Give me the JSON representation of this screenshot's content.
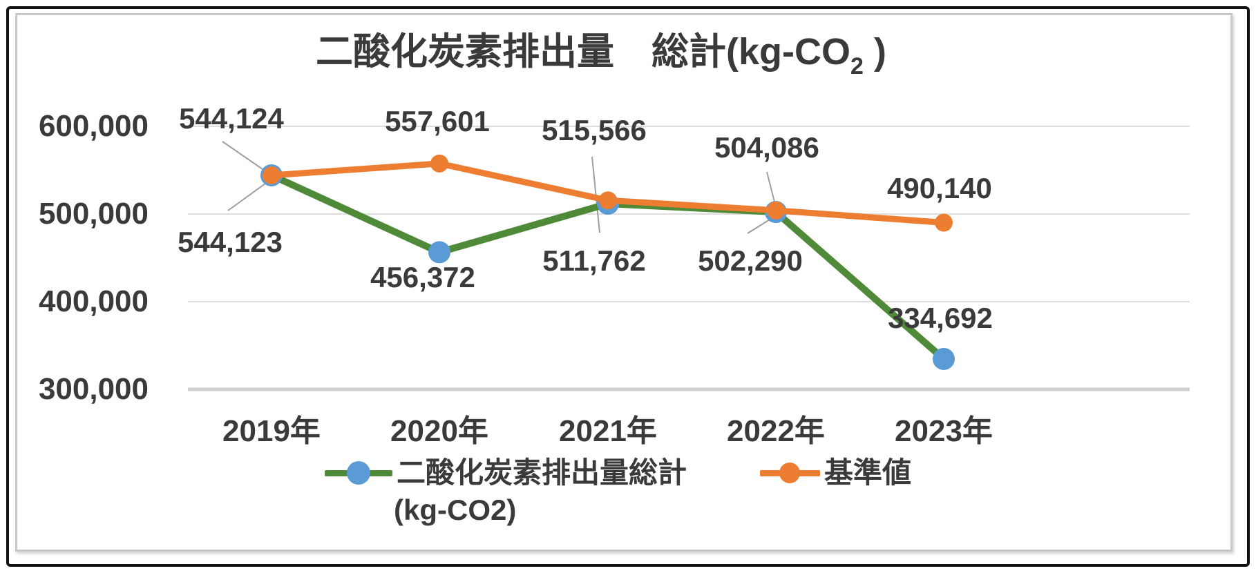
{
  "title": {
    "prefix": "二酸化炭素排出量　総計(kg-CO",
    "subscript": "2",
    "suffix": " )"
  },
  "legend": {
    "items": [
      {
        "line1": "二酸化炭素排出量総計",
        "line2": "(kg-CO2)"
      },
      {
        "line1": "基準値"
      }
    ]
  },
  "colors": {
    "series1_line": "#4e8a38",
    "series1_marker": "#5b9bd5",
    "series2_line": "#ed7d31",
    "series2_marker": "#ed7d31",
    "gridline": "#dedede",
    "axis_line": "#cfcfcf",
    "leader_line": "#9e9e9e",
    "text": "#3a3a3a"
  },
  "chart_data": {
    "type": "line",
    "title": "二酸化炭素排出量 総計(kg-CO2)",
    "categories": [
      "2019年",
      "2020年",
      "2021年",
      "2022年",
      "2023年"
    ],
    "series": [
      {
        "name": "二酸化炭素排出量総計 (kg-CO2)",
        "values": [
          544123,
          456372,
          511762,
          502290,
          334692
        ],
        "data_labels": [
          "544,123",
          "456,372",
          "511,762",
          "502,290",
          "334,692"
        ],
        "line_color": "#4e8a38",
        "marker_color": "#5b9bd5",
        "marker": "circle"
      },
      {
        "name": "基準値",
        "values": [
          544124,
          557601,
          515566,
          504086,
          490140
        ],
        "data_labels": [
          "544,124",
          "557,601",
          "515,566",
          "504,086",
          "490,140"
        ],
        "line_color": "#ed7d31",
        "marker_color": "#ed7d31",
        "marker": "circle"
      }
    ],
    "xlabel": "",
    "ylabel": "",
    "ylim": [
      300000,
      600000
    ],
    "ytick_interval": 100000,
    "ytick_labels": [
      "600,000",
      "500,000",
      "400,000",
      "300,000"
    ],
    "grid": true,
    "legend_position": "bottom"
  }
}
